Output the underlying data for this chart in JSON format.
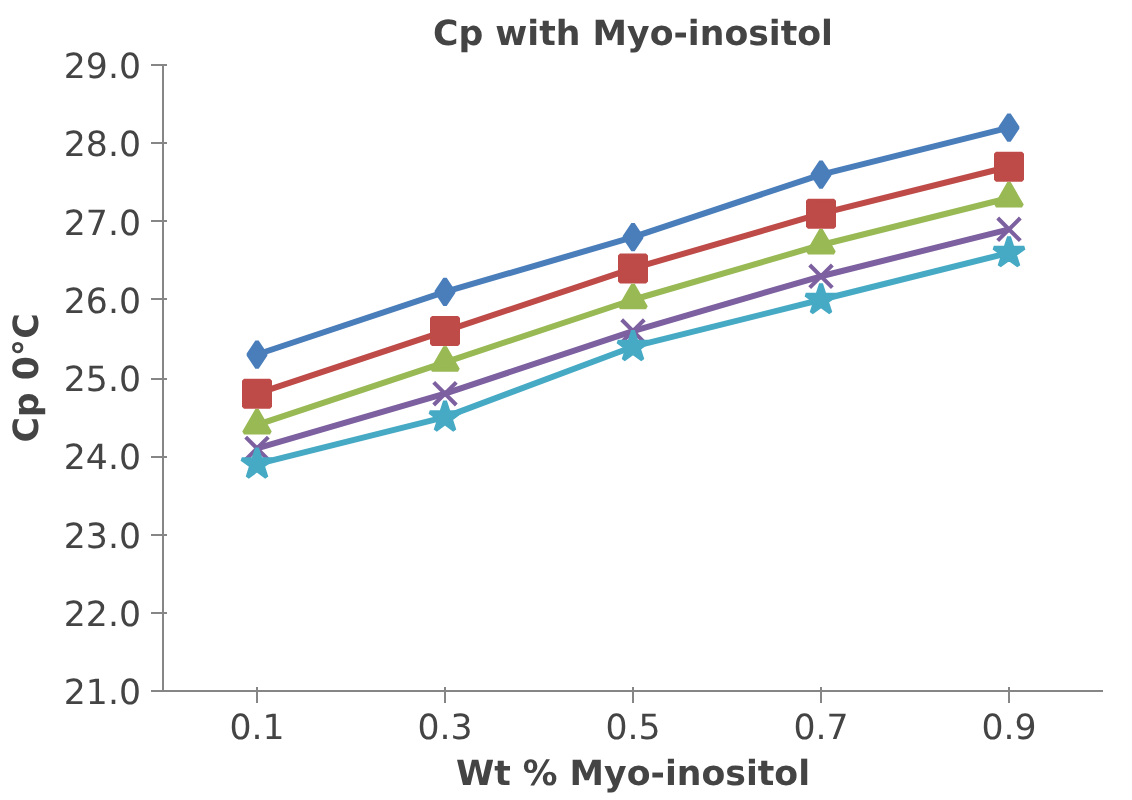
{
  "chart_data": {
    "type": "line",
    "title": "Cp with Myo-inositol",
    "xlabel": "Wt % Myo-inositol",
    "ylabel": "Cp 0°C",
    "categories": [
      "0.1",
      "0.3",
      "0.5",
      "0.7",
      "0.9"
    ],
    "series": [
      {
        "color": "#4a7ebb",
        "marker": "diamond",
        "values": [
          25.3,
          26.1,
          26.8,
          27.6,
          28.2
        ]
      },
      {
        "color": "#be4b48",
        "marker": "square",
        "values": [
          24.8,
          25.6,
          26.4,
          27.1,
          27.7
        ]
      },
      {
        "color": "#98b954",
        "marker": "triangle",
        "values": [
          24.4,
          25.2,
          26.0,
          26.7,
          27.3
        ]
      },
      {
        "color": "#7d60a0",
        "marker": "cross",
        "values": [
          24.1,
          24.8,
          25.6,
          26.3,
          26.9
        ]
      },
      {
        "color": "#46aac5",
        "marker": "star",
        "values": [
          23.9,
          24.5,
          25.4,
          26.0,
          26.6
        ]
      }
    ],
    "ylim": [
      21,
      29
    ],
    "yticks": [
      {
        "value": 21,
        "label": "21.0"
      },
      {
        "value": 22,
        "label": "22.0"
      },
      {
        "value": 23,
        "label": "23.0"
      },
      {
        "value": 24,
        "label": "24.0"
      },
      {
        "value": 25,
        "label": "25.0"
      },
      {
        "value": 26,
        "label": "26.0"
      },
      {
        "value": 27,
        "label": "27.0"
      },
      {
        "value": 28,
        "label": "28.0"
      },
      {
        "value": 29,
        "label": "29.0"
      }
    ],
    "grid": false
  }
}
